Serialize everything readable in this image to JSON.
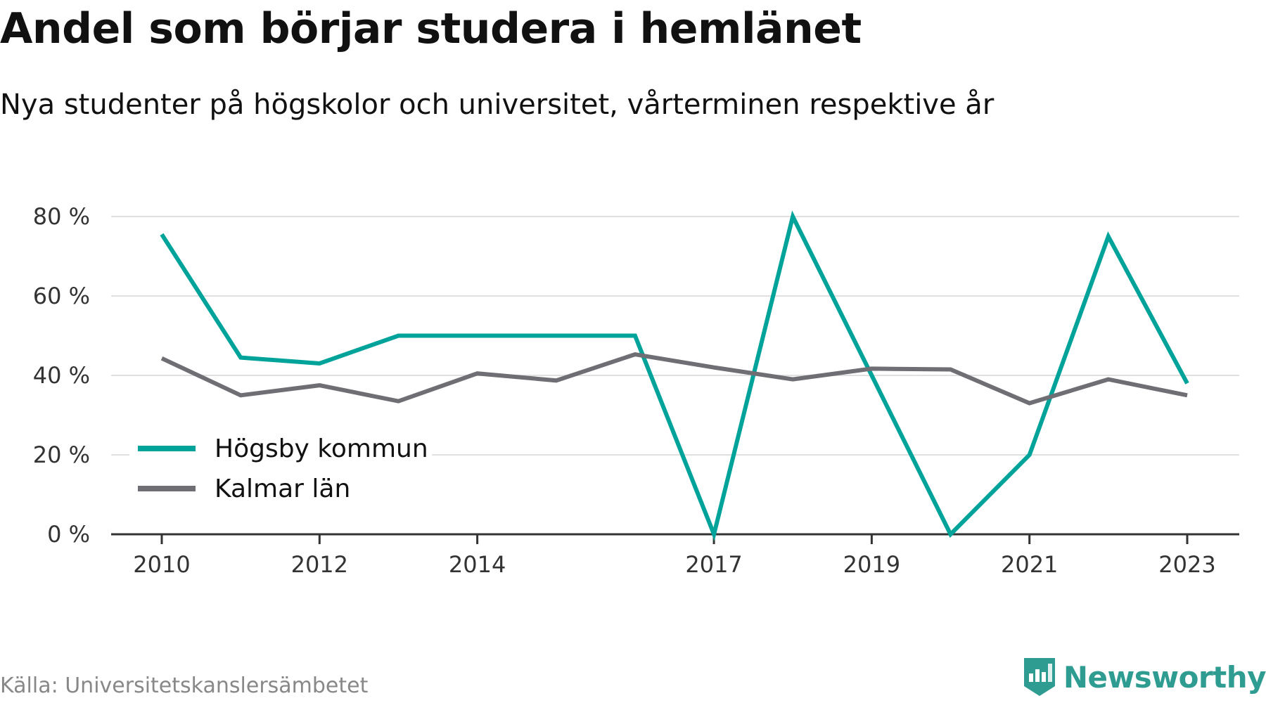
{
  "header": {
    "title": "Andel som börjar studera i hemlänet",
    "subtitle": "Nya studenter på högskolor och universitet, vårterminen respektive år"
  },
  "footer": {
    "source": "Källa: Universitetskanslersämbetet",
    "brand": "Newsworthy",
    "brand_icon": "bar-chart-icon",
    "brand_color": "#2f9c92"
  },
  "chart_data": {
    "type": "line",
    "title": "Andel som börjar studera i hemlänet",
    "subtitle": "Nya studenter på högskolor och universitet, vårterminen respektive år",
    "xlabel": "",
    "ylabel": "",
    "x": [
      2010,
      2011,
      2012,
      2013,
      2014,
      2015,
      2016,
      2017,
      2018,
      2019,
      2020,
      2021,
      2022,
      2023
    ],
    "x_ticks": [
      "2010",
      "2012",
      "2014",
      "2017",
      "2019",
      "2021",
      "2023"
    ],
    "y_ticks": [
      "0 %",
      "20 %",
      "40 %",
      "60 %",
      "80 %"
    ],
    "ylim": [
      0,
      80
    ],
    "grid": true,
    "legend_position": "bottom-left",
    "series": [
      {
        "name": "Högsby kommun",
        "color": "#00a39a",
        "values": [
          75.5,
          44.5,
          43,
          50,
          50,
          50,
          50,
          0,
          80,
          40,
          0,
          20,
          75,
          38
        ]
      },
      {
        "name": "Kalmar län",
        "color": "#6f6e74",
        "values": [
          44.3,
          35,
          37.5,
          33.5,
          40.5,
          38.7,
          45.3,
          42,
          39,
          41.7,
          41.5,
          33,
          39,
          35
        ]
      }
    ]
  }
}
